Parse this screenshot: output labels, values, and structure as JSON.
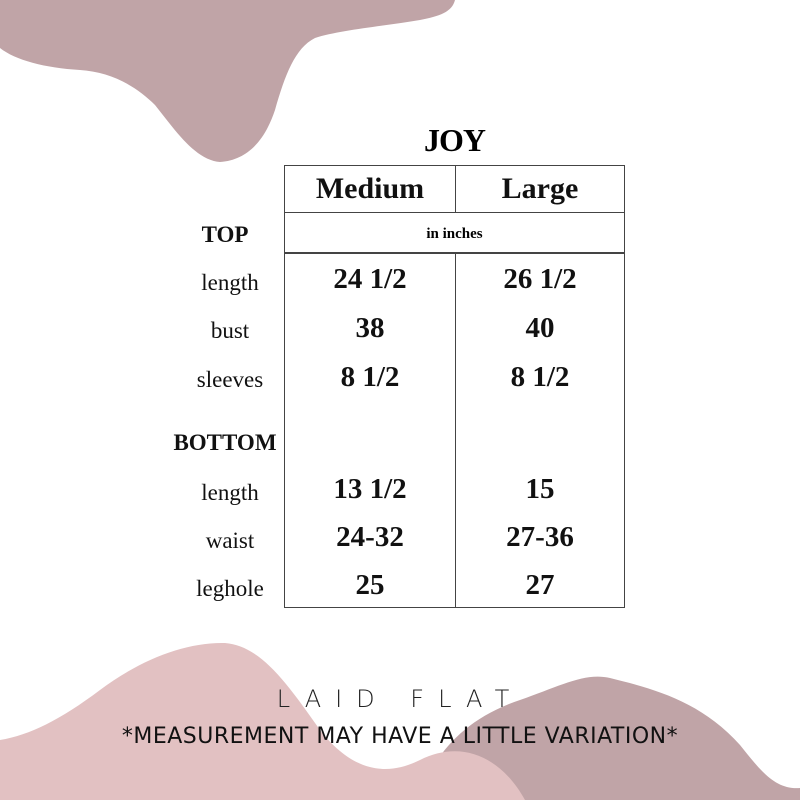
{
  "title": "JOY",
  "columns": [
    "Medium",
    "Large"
  ],
  "unit_note": "in inches",
  "sections": [
    {
      "label": "TOP",
      "rows": [
        {
          "label": "length",
          "values": [
            "24 1/2",
            "26 1/2"
          ]
        },
        {
          "label": "bust",
          "values": [
            "38",
            "40"
          ]
        },
        {
          "label": "sleeves",
          "values": [
            "8 1/2",
            "8 1/2"
          ]
        }
      ]
    },
    {
      "label": "BOTTOM",
      "rows": [
        {
          "label": "length",
          "values": [
            "13 1/2",
            "15"
          ]
        },
        {
          "label": "waist",
          "values": [
            "24-32",
            "27-36"
          ]
        },
        {
          "label": "leghole",
          "values": [
            "25",
            "27"
          ]
        }
      ]
    }
  ],
  "footer": {
    "line1": "LAID FLAT",
    "line2": "*MEASUREMENT MAY HAVE A LITTLE VARIATION*"
  },
  "colors": {
    "blob_dark": "#c0a4a7",
    "blob_light": "#e2c1c2"
  }
}
